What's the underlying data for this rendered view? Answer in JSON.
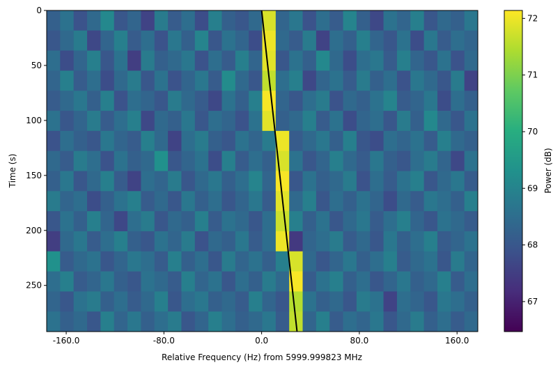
{
  "chart_data": {
    "type": "heatmap",
    "x_label": "Relative Frequency (Hz) from 5999.999823 MHz",
    "y_label": "Time (s)",
    "colorbar_label": "Power (dB)",
    "colormap": "viridis",
    "xlim": [
      -176,
      177
    ],
    "ylim": [
      292,
      0
    ],
    "xticks": [
      {
        "value": -160,
        "label": "-160.0"
      },
      {
        "value": -80,
        "label": "-80.0"
      },
      {
        "value": 0,
        "label": "0.0"
      },
      {
        "value": 80,
        "label": "80.0"
      },
      {
        "value": 160,
        "label": "160.0"
      }
    ],
    "yticks": [
      0,
      50,
      100,
      150,
      200,
      250
    ],
    "clim": [
      66.47,
      72.14
    ],
    "cticks": [
      67,
      68,
      69,
      70,
      71,
      72
    ],
    "z": [
      [
        68.2,
        68.6,
        67.9,
        68.4,
        69.1,
        68.0,
        68.3,
        67.6,
        68.8,
        68.1,
        68.5,
        67.8,
        68.9,
        68.2,
        68.0,
        68.4,
        71.8,
        68.3,
        68.7,
        67.9,
        68.5,
        68.1,
        69.0,
        68.2,
        67.7,
        68.6,
        68.3,
        68.9,
        68.0,
        68.4,
        68.2,
        68.7
      ],
      [
        68.0,
        68.4,
        68.8,
        67.7,
        68.3,
        68.9,
        68.1,
        68.5,
        67.9,
        68.7,
        68.2,
        69.0,
        68.0,
        68.6,
        68.3,
        67.8,
        72.0,
        68.4,
        68.1,
        68.8,
        67.6,
        68.5,
        68.2,
        68.9,
        68.3,
        68.0,
        68.6,
        67.8,
        68.7,
        68.1,
        68.5,
        68.3
      ],
      [
        68.5,
        67.8,
        68.3,
        68.9,
        68.0,
        68.6,
        67.5,
        68.8,
        68.2,
        68.4,
        68.7,
        67.9,
        68.5,
        68.1,
        68.9,
        68.3,
        71.9,
        68.0,
        68.6,
        68.2,
        69.1,
        68.4,
        67.8,
        68.5,
        68.7,
        68.1,
        68.9,
        68.3,
        68.0,
        68.6,
        67.9,
        68.4
      ],
      [
        68.3,
        68.9,
        68.1,
        68.5,
        67.8,
        68.4,
        68.8,
        68.0,
        68.6,
        67.9,
        68.3,
        68.7,
        68.1,
        69.2,
        68.4,
        68.0,
        71.6,
        68.5,
        68.9,
        67.7,
        68.3,
        68.6,
        68.1,
        68.8,
        68.2,
        68.5,
        67.9,
        68.7,
        68.4,
        68.0,
        68.8,
        67.6
      ],
      [
        68.1,
        68.4,
        68.7,
        68.2,
        68.9,
        67.9,
        68.5,
        68.3,
        68.0,
        68.8,
        68.4,
        68.1,
        67.7,
        68.6,
        68.2,
        68.9,
        72.1,
        68.3,
        68.0,
        68.5,
        68.8,
        67.9,
        68.4,
        68.2,
        68.6,
        69.0,
        68.1,
        68.3,
        68.7,
        67.8,
        68.5,
        68.2
      ],
      [
        68.6,
        68.0,
        68.3,
        68.8,
        68.1,
        68.5,
        68.9,
        67.7,
        68.4,
        68.2,
        68.7,
        68.0,
        68.5,
        68.3,
        67.9,
        68.6,
        71.9,
        68.2,
        68.4,
        68.9,
        68.1,
        68.6,
        67.8,
        68.3,
        68.5,
        68.0,
        68.8,
        68.2,
        69.1,
        68.4,
        68.0,
        68.6
      ],
      [
        67.9,
        68.5,
        68.2,
        68.0,
        68.7,
        68.3,
        68.1,
        68.9,
        68.4,
        67.6,
        68.5,
        68.8,
        68.2,
        68.0,
        68.6,
        68.3,
        68.8,
        72.0,
        68.1,
        68.4,
        68.7,
        68.2,
        68.9,
        68.0,
        67.8,
        68.5,
        68.3,
        68.6,
        68.1,
        68.9,
        68.4,
        68.2
      ],
      [
        68.4,
        68.1,
        68.8,
        68.5,
        67.9,
        68.6,
        68.2,
        68.4,
        69.3,
        68.0,
        68.3,
        68.6,
        67.8,
        68.9,
        68.1,
        68.5,
        68.2,
        71.8,
        68.6,
        68.0,
        68.3,
        68.9,
        68.4,
        68.1,
        68.7,
        68.2,
        68.0,
        68.5,
        68.8,
        68.3,
        67.7,
        68.6
      ],
      [
        68.2,
        68.7,
        68.0,
        68.4,
        68.9,
        68.1,
        67.6,
        68.5,
        68.3,
        68.8,
        68.0,
        68.4,
        68.7,
        68.2,
        68.5,
        69.0,
        68.3,
        72.1,
        68.0,
        68.6,
        68.2,
        68.4,
        68.8,
        67.9,
        68.5,
        68.1,
        68.6,
        68.9,
        68.0,
        68.4,
        68.7,
        68.1
      ],
      [
        68.8,
        68.3,
        68.5,
        67.8,
        68.2,
        68.6,
        68.9,
        68.1,
        68.4,
        68.0,
        68.7,
        68.2,
        68.5,
        68.0,
        68.3,
        68.7,
        68.1,
        71.9,
        68.4,
        68.9,
        68.0,
        68.5,
        68.2,
        68.6,
        68.3,
        67.8,
        68.4,
        68.1,
        68.7,
        68.5,
        68.2,
        68.9
      ],
      [
        68.0,
        68.6,
        68.2,
        68.9,
        68.3,
        67.7,
        68.5,
        68.8,
        68.0,
        68.4,
        68.2,
        68.9,
        68.1,
        68.6,
        68.4,
        68.0,
        68.5,
        71.7,
        68.9,
        68.2,
        68.6,
        68.0,
        68.4,
        68.7,
        68.1,
        68.5,
        68.9,
        68.3,
        68.0,
        68.6,
        68.4,
        68.1
      ],
      [
        67.5,
        68.4,
        68.7,
        68.1,
        68.5,
        68.9,
        68.2,
        68.0,
        68.6,
        68.3,
        68.8,
        67.9,
        68.4,
        68.2,
        68.7,
        68.1,
        68.5,
        72.0,
        67.4,
        68.3,
        68.5,
        68.8,
        68.1,
        68.4,
        68.0,
        68.7,
        68.2,
        68.5,
        68.9,
        68.1,
        68.3,
        68.6
      ],
      [
        69.3,
        68.1,
        68.4,
        68.6,
        68.0,
        68.3,
        68.7,
        68.5,
        68.1,
        68.9,
        68.2,
        68.5,
        68.0,
        68.8,
        68.3,
        68.6,
        68.2,
        68.9,
        71.8,
        68.4,
        68.0,
        68.3,
        68.7,
        68.2,
        68.5,
        68.9,
        68.1,
        68.4,
        68.6,
        68.0,
        68.8,
        68.3
      ],
      [
        68.5,
        68.9,
        68.1,
        68.3,
        68.7,
        68.2,
        68.0,
        68.6,
        68.4,
        68.1,
        68.9,
        68.3,
        68.6,
        68.0,
        68.5,
        68.2,
        68.8,
        68.4,
        72.1,
        68.1,
        68.6,
        68.9,
        68.2,
        68.5,
        68.0,
        68.3,
        68.7,
        68.2,
        68.4,
        68.9,
        68.1,
        68.5
      ],
      [
        68.3,
        68.0,
        68.6,
        68.8,
        68.2,
        68.5,
        68.1,
        68.4,
        68.9,
        68.0,
        68.5,
        68.7,
        68.2,
        68.4,
        68.1,
        68.9,
        68.3,
        68.0,
        71.5,
        68.6,
        68.2,
        68.4,
        68.0,
        68.8,
        68.6,
        67.6,
        68.5,
        68.3,
        68.0,
        68.7,
        68.5,
        68.2
      ],
      [
        68.6,
        68.2,
        68.4,
        68.0,
        68.9,
        68.3,
        68.7,
        68.2,
        68.5,
        68.8,
        68.0,
        68.3,
        68.9,
        68.5,
        68.2,
        68.4,
        68.7,
        68.1,
        71.6,
        68.3,
        68.9,
        68.1,
        68.5,
        68.3,
        68.7,
        68.0,
        68.4,
        68.8,
        68.2,
        68.5,
        68.1,
        68.4
      ]
    ],
    "line": {
      "x": [
        0,
        29
      ],
      "y": [
        0,
        292
      ],
      "color": "#000000"
    }
  }
}
